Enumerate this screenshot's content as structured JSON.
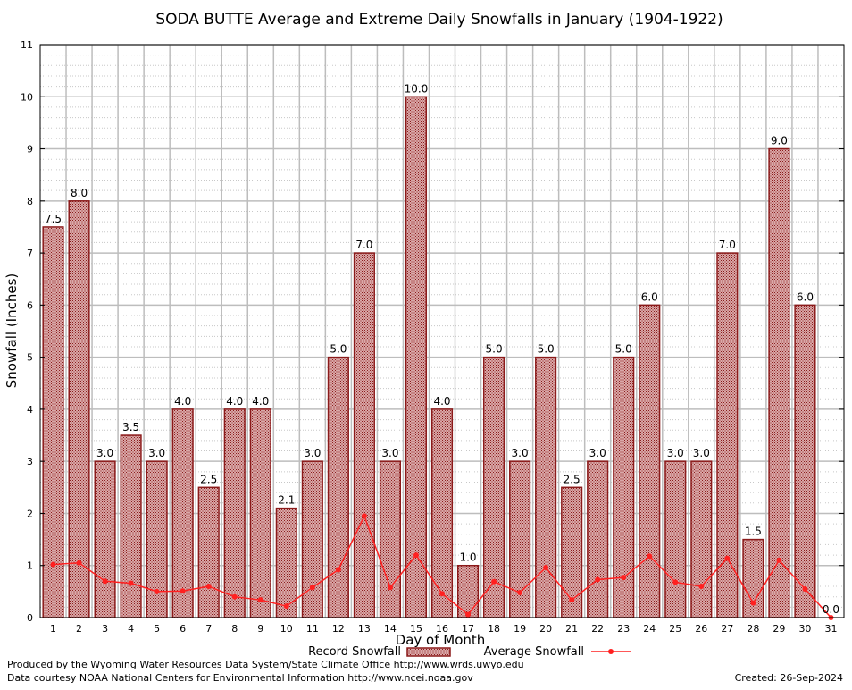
{
  "chart_data": {
    "type": "bar",
    "title": "SODA BUTTE Average and Extreme Daily Snowfalls in January (1904-1922)",
    "xlabel": "Day of Month",
    "ylabel": "Snowfall (Inches)",
    "ylim": [
      0,
      11
    ],
    "yticks": [
      "0",
      "1",
      "2",
      "3",
      "4",
      "5",
      "6",
      "7",
      "8",
      "9",
      "10",
      "11"
    ],
    "categories": [
      "1",
      "2",
      "3",
      "4",
      "5",
      "6",
      "7",
      "8",
      "9",
      "10",
      "11",
      "12",
      "13",
      "14",
      "15",
      "16",
      "17",
      "18",
      "19",
      "20",
      "21",
      "22",
      "23",
      "24",
      "25",
      "26",
      "27",
      "28",
      "29",
      "30",
      "31"
    ],
    "grid": true,
    "legend_position": "bottom",
    "series": [
      {
        "name": "Record Snowfall",
        "kind": "bar",
        "color": "#8b1a1a",
        "values": [
          7.5,
          8.0,
          3.0,
          3.5,
          3.0,
          4.0,
          2.5,
          4.0,
          4.0,
          2.1,
          3.0,
          5.0,
          7.0,
          3.0,
          10.0,
          4.0,
          1.0,
          5.0,
          3.0,
          5.0,
          2.5,
          3.0,
          5.0,
          6.0,
          3.0,
          3.0,
          7.0,
          1.5,
          9.0,
          6.0,
          0.0
        ],
        "labels": [
          "7.5",
          "8.0",
          "3.0",
          "3.5",
          "3.0",
          "4.0",
          "2.5",
          "4.0",
          "4.0",
          "2.1",
          "3.0",
          "5.0",
          "7.0",
          "3.0",
          "10.0",
          "4.0",
          "1.0",
          "5.0",
          "3.0",
          "5.0",
          "2.5",
          "3.0",
          "5.0",
          "6.0",
          "3.0",
          "3.0",
          "7.0",
          "1.5",
          "9.0",
          "6.0",
          "0.0"
        ]
      },
      {
        "name": "Average Snowfall",
        "kind": "line",
        "color": "#ff2020",
        "values": [
          1.02,
          1.05,
          0.7,
          0.66,
          0.5,
          0.51,
          0.6,
          0.4,
          0.34,
          0.22,
          0.58,
          0.92,
          1.95,
          0.58,
          1.2,
          0.46,
          0.06,
          0.69,
          0.48,
          0.96,
          0.34,
          0.73,
          0.77,
          1.18,
          0.68,
          0.6,
          1.14,
          0.28,
          1.1,
          0.55,
          0.0
        ]
      }
    ]
  },
  "footer": {
    "produced_by": "Produced by the Wyoming Water Resources Data System/State Climate Office http://www.wrds.uwyo.edu",
    "courtesy": "Data courtesy NOAA National Centers for Environmental Information http://www.ncei.noaa.gov",
    "created": "Created:  26-Sep-2024"
  }
}
